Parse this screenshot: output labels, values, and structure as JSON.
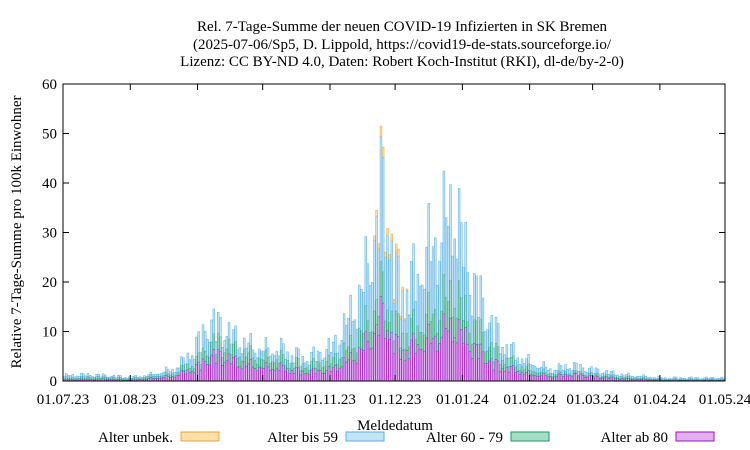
{
  "chart_data": {
    "type": "bar",
    "stacked": true,
    "title": [
      "Rel. 7-Tage-Summe der neuen COVID-19 Infizierten in SK Bremen",
      "(2025-07-06/Sp5, D. Lippold, https://covid19-de-stats.sourceforge.io/",
      "Lizenz: CC BY-ND 4.0, Daten: Robert Koch-Institut (RKI), dl-de/by-2-0)"
    ],
    "xlabel": "Meldedatum",
    "ylabel": "Relative 7-Tage-Summe pro 100k Einwohner",
    "ylim": [
      0,
      60
    ],
    "yticks": [
      0,
      10,
      20,
      30,
      40,
      50,
      60
    ],
    "xlim": [
      "2023-07-01",
      "2024-05-01"
    ],
    "xticks": [
      "01.07.23",
      "01.08.23",
      "01.09.23",
      "01.10.23",
      "01.11.23",
      "01.12.23",
      "01.01.24",
      "01.02.24",
      "01.03.24",
      "01.04.24",
      "01.05.24"
    ],
    "grid": false,
    "legend_position": "bottom",
    "bar_interval": "daily",
    "series_order_bottom_to_top": [
      "Alter ab 80",
      "Alter 60 - 79",
      "Alter bis 59",
      "Alter unbek."
    ],
    "series": [
      {
        "name": "Alter unbek.",
        "color": "#e8a33d",
        "fill": "#fbe0a8",
        "profile": [
          [
            "2023-07-01",
            0
          ],
          [
            "2023-11-20",
            0
          ],
          [
            "2023-11-21",
            1
          ],
          [
            "2023-11-25",
            2
          ],
          [
            "2023-11-29",
            1.5
          ],
          [
            "2023-12-01",
            1.5
          ],
          [
            "2023-12-05",
            0.5
          ],
          [
            "2023-12-08",
            0
          ]
        ]
      },
      {
        "name": "Alter bis 59",
        "color": "#57b1e3",
        "fill": "#c5e3f7",
        "profile": [
          [
            "2023-07-01",
            0.5
          ],
          [
            "2023-07-10",
            0.6
          ],
          [
            "2023-07-20",
            0.4
          ],
          [
            "2023-08-01",
            0.3
          ],
          [
            "2023-08-10",
            0.4
          ],
          [
            "2023-08-20",
            1
          ],
          [
            "2023-08-25",
            1.5
          ],
          [
            "2023-08-31",
            3.5
          ],
          [
            "2023-09-05",
            5
          ],
          [
            "2023-09-10",
            4
          ],
          [
            "2023-09-15",
            3
          ],
          [
            "2023-09-20",
            2.5
          ],
          [
            "2023-09-25",
            2
          ],
          [
            "2023-10-01",
            2
          ],
          [
            "2023-10-10",
            2
          ],
          [
            "2023-10-20",
            1.5
          ],
          [
            "2023-10-25",
            2
          ],
          [
            "2023-11-01",
            3
          ],
          [
            "2023-11-05",
            4
          ],
          [
            "2023-11-10",
            7
          ],
          [
            "2023-11-15",
            9
          ],
          [
            "2023-11-20",
            15
          ],
          [
            "2023-11-25",
            22
          ],
          [
            "2023-11-28",
            18
          ],
          [
            "2023-12-01",
            10
          ],
          [
            "2023-12-05",
            10
          ],
          [
            "2023-12-10",
            11
          ],
          [
            "2023-12-15",
            14
          ],
          [
            "2023-12-20",
            16
          ],
          [
            "2023-12-25",
            18
          ],
          [
            "2023-12-28",
            19
          ],
          [
            "2024-01-01",
            14
          ],
          [
            "2024-01-05",
            10
          ],
          [
            "2024-01-10",
            7
          ],
          [
            "2024-01-15",
            5
          ],
          [
            "2024-01-20",
            3
          ],
          [
            "2024-01-25",
            2
          ],
          [
            "2024-02-01",
            1.5
          ],
          [
            "2024-02-10",
            1
          ],
          [
            "2024-02-20",
            1.5
          ],
          [
            "2024-03-01",
            1
          ],
          [
            "2024-03-15",
            0.5
          ],
          [
            "2024-04-01",
            0.3
          ],
          [
            "2024-05-01",
            0.3
          ]
        ]
      },
      {
        "name": "Alter 60 - 79",
        "color": "#1a9b6f",
        "fill": "#a7dcc5",
        "profile": [
          [
            "2023-07-01",
            0.4
          ],
          [
            "2023-07-15",
            0.5
          ],
          [
            "2023-08-01",
            0.3
          ],
          [
            "2023-08-20",
            0.6
          ],
          [
            "2023-08-31",
            1.5
          ],
          [
            "2023-09-05",
            2.5
          ],
          [
            "2023-09-10",
            3
          ],
          [
            "2023-09-20",
            2.5
          ],
          [
            "2023-10-01",
            2
          ],
          [
            "2023-10-10",
            2
          ],
          [
            "2023-10-20",
            1.5
          ],
          [
            "2023-11-01",
            2
          ],
          [
            "2023-11-10",
            3
          ],
          [
            "2023-11-15",
            4
          ],
          [
            "2023-11-20",
            5
          ],
          [
            "2023-11-25",
            6
          ],
          [
            "2023-12-01",
            4
          ],
          [
            "2023-12-05",
            4
          ],
          [
            "2023-12-10",
            4
          ],
          [
            "2023-12-15",
            5
          ],
          [
            "2023-12-20",
            6
          ],
          [
            "2023-12-25",
            7
          ],
          [
            "2023-12-28",
            8
          ],
          [
            "2024-01-01",
            6
          ],
          [
            "2024-01-05",
            5
          ],
          [
            "2024-01-10",
            4
          ],
          [
            "2024-01-15",
            3
          ],
          [
            "2024-01-20",
            2
          ],
          [
            "2024-01-25",
            1.5
          ],
          [
            "2024-02-01",
            1
          ],
          [
            "2024-02-15",
            0.5
          ],
          [
            "2024-03-01",
            0.5
          ],
          [
            "2024-04-01",
            0.2
          ],
          [
            "2024-05-01",
            0.2
          ]
        ]
      },
      {
        "name": "Alter ab 80",
        "color": "#a010c8",
        "fill": "#dfb1ee",
        "profile": [
          [
            "2023-07-01",
            0.3
          ],
          [
            "2023-07-20",
            0.4
          ],
          [
            "2023-08-01",
            0.2
          ],
          [
            "2023-08-20",
            1
          ],
          [
            "2023-08-31",
            3
          ],
          [
            "2023-09-05",
            5
          ],
          [
            "2023-09-10",
            6
          ],
          [
            "2023-09-15",
            5
          ],
          [
            "2023-09-20",
            4
          ],
          [
            "2023-10-01",
            3
          ],
          [
            "2023-10-10",
            3
          ],
          [
            "2023-10-20",
            2
          ],
          [
            "2023-11-01",
            2.5
          ],
          [
            "2023-11-10",
            5
          ],
          [
            "2023-11-15",
            7
          ],
          [
            "2023-11-20",
            10
          ],
          [
            "2023-11-25",
            15
          ],
          [
            "2023-11-28",
            12
          ],
          [
            "2023-12-01",
            8
          ],
          [
            "2023-12-05",
            7
          ],
          [
            "2023-12-10",
            8
          ],
          [
            "2023-12-15",
            9
          ],
          [
            "2023-12-20",
            10
          ],
          [
            "2023-12-25",
            12
          ],
          [
            "2023-12-28",
            12
          ],
          [
            "2024-01-01",
            10
          ],
          [
            "2024-01-05",
            8
          ],
          [
            "2024-01-10",
            6
          ],
          [
            "2024-01-15",
            4
          ],
          [
            "2024-01-20",
            3
          ],
          [
            "2024-01-25",
            2.5
          ],
          [
            "2024-02-01",
            1.5
          ],
          [
            "2024-02-10",
            1
          ],
          [
            "2024-02-20",
            1.5
          ],
          [
            "2024-03-01",
            1
          ],
          [
            "2024-03-15",
            0.5
          ],
          [
            "2024-04-01",
            0.2
          ],
          [
            "2024-05-01",
            0.2
          ]
        ]
      }
    ]
  }
}
